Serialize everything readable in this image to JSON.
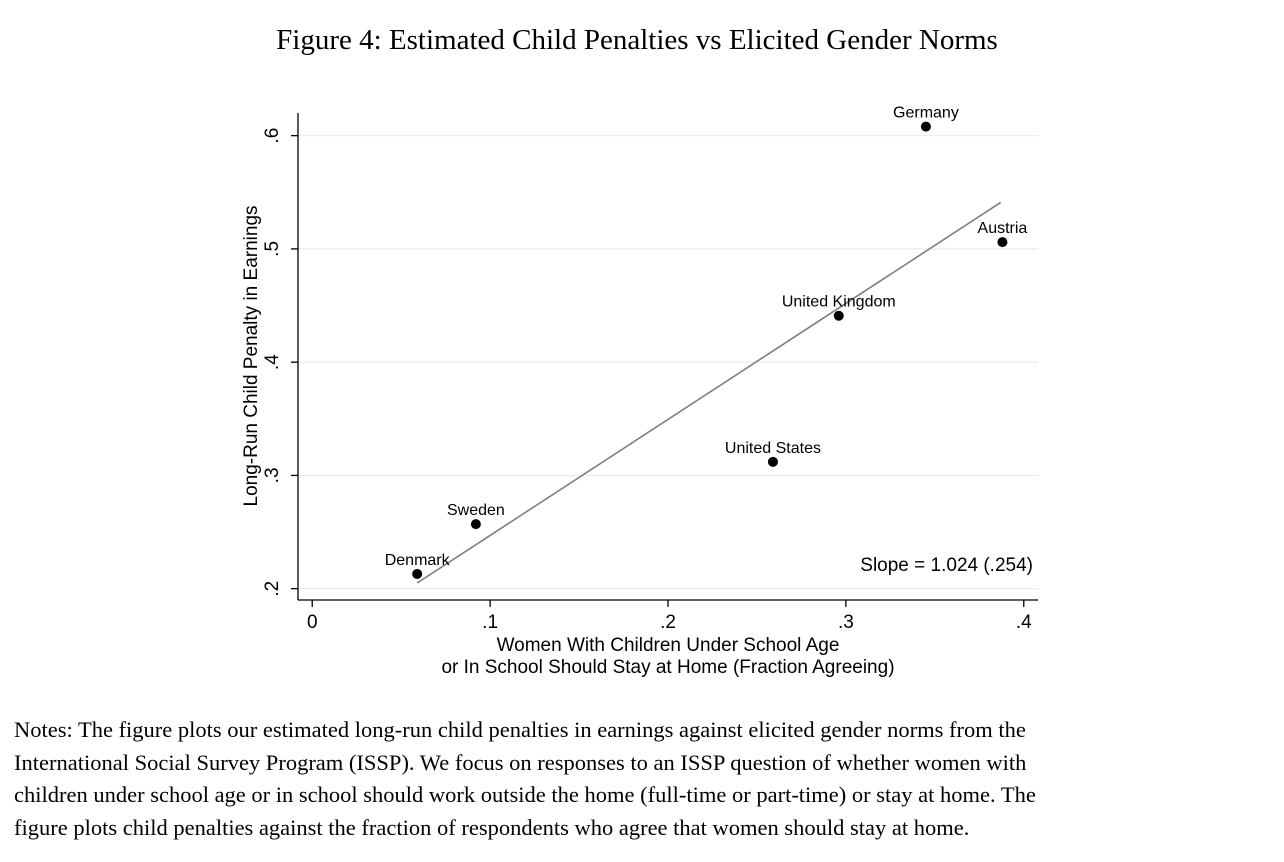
{
  "figure_title": "Figure 4: Estimated Child Penalties vs Elicited Gender Norms",
  "chart_data": {
    "type": "scatter",
    "xlabel_lines": [
      "Women With Children Under School Age",
      "or In School Should Stay at Home (Fraction Agreeing)"
    ],
    "ylabel": "Long-Run Child Penalty in Earnings",
    "xlim": [
      -0.008,
      0.408
    ],
    "ylim": [
      0.19,
      0.62
    ],
    "x_ticks": [
      {
        "value": 0,
        "label": "0"
      },
      {
        "value": 0.1,
        "label": ".1"
      },
      {
        "value": 0.2,
        "label": ".2"
      },
      {
        "value": 0.3,
        "label": ".3"
      },
      {
        "value": 0.4,
        "label": ".4"
      }
    ],
    "y_ticks": [
      {
        "value": 0.2,
        "label": ".2"
      },
      {
        "value": 0.3,
        "label": ".3"
      },
      {
        "value": 0.4,
        "label": ".4"
      },
      {
        "value": 0.5,
        "label": ".5"
      },
      {
        "value": 0.6,
        "label": ".6"
      }
    ],
    "grid": "horizontal",
    "points": [
      {
        "label": "Denmark",
        "x": 0.059,
        "y": 0.213
      },
      {
        "label": "Sweden",
        "x": 0.092,
        "y": 0.257
      },
      {
        "label": "United States",
        "x": 0.259,
        "y": 0.312
      },
      {
        "label": "United Kingdom",
        "x": 0.296,
        "y": 0.441
      },
      {
        "label": "Germany",
        "x": 0.345,
        "y": 0.608
      },
      {
        "label": "Austria",
        "x": 0.388,
        "y": 0.506
      }
    ],
    "fit_line": {
      "x": [
        0.059,
        0.387
      ],
      "y": [
        0.205,
        0.541
      ]
    },
    "annotation": "Slope = 1.024 (.254)",
    "colors": {
      "points": "#000000",
      "fit_line": "#7f7f7f",
      "grid": "#e2eef0",
      "axis": "#000000"
    }
  },
  "notes": [
    "Notes: The figure plots our estimated long-run child penalties in earnings against elicited gender norms from the",
    "International Social Survey Program (ISSP). We focus on responses to an ISSP question of whether women with",
    "children under school age or in school should work outside the home (full-time or part-time) or stay at home. The",
    "figure plots child penalties against the fraction of respondents who agree that women should stay at home."
  ]
}
